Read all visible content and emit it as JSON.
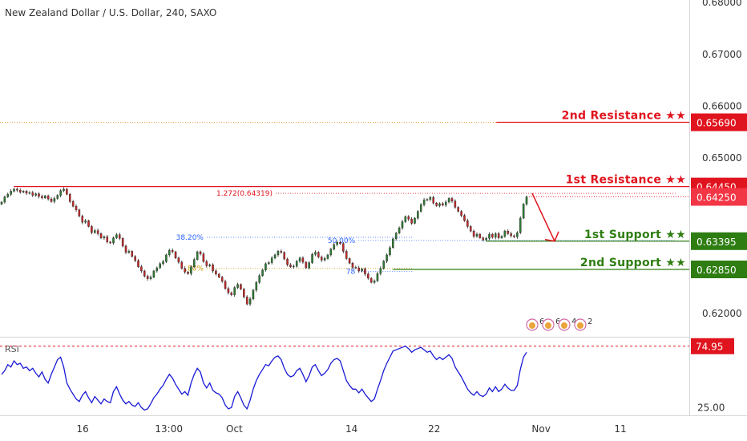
{
  "chart_data": {
    "type": "candlestick",
    "title": "New Zealand Dollar / U.S. Dollar, 240, SAXO",
    "price_axis": {
      "ylim": [
        0.6155,
        0.6805
      ],
      "ticks": [
        "0.68000",
        "0.67000",
        "0.66000",
        "0.65000",
        "0.62000"
      ],
      "tick_values": [
        0.68,
        0.67,
        0.66,
        0.65,
        0.62
      ]
    },
    "time_axis": {
      "ticks": [
        "16",
        "13:00",
        "Oct",
        "14",
        "22",
        "Nov",
        "11"
      ],
      "tick_positions": [
        0.12,
        0.245,
        0.34,
        0.51,
        0.63,
        0.785,
        0.9
      ]
    },
    "current_price": {
      "value": 0.6425,
      "label": "0.64250",
      "color": "#f23645"
    },
    "levels": [
      {
        "name": "2nd Resistance ★★",
        "value": 0.6569,
        "label": "0.65690",
        "color": "#e0141e",
        "kind": "resistance",
        "x_start": 0.72
      },
      {
        "name": "1st Resistance ★★",
        "value": 0.6445,
        "label": "0.64450",
        "color": "#e0141e",
        "kind": "resistance",
        "x_start": 0.02
      },
      {
        "name": "1st Support ★★",
        "value": 0.63395,
        "label": "0.63395",
        "color": "#2e7d12",
        "kind": "support",
        "x_start": 0.705
      },
      {
        "name": "2nd Support ★★",
        "value": 0.6285,
        "label": "0.62850",
        "color": "#2e7d12",
        "kind": "support",
        "x_start": 0.57
      }
    ],
    "fib_annotations": [
      {
        "label": "1.272(0.64319)",
        "value": 0.64319,
        "color": "#e0141e",
        "x_from": 0.4,
        "x_to": 0.98
      },
      {
        "label": "38.20%",
        "value": 0.6347,
        "color": "#2962ff",
        "x_from": 0.3,
        "x_to": 0.6
      },
      {
        "label": "50.00%",
        "value": 0.6341,
        "color": "#2962ff",
        "x_from": 0.52,
        "x_to": 0.98
      },
      {
        "label": ".80%",
        "value": 0.6287,
        "color": "#c59a00",
        "x_from": 0.3,
        "x_to": 0.6
      },
      {
        "label": "78",
        "value": 0.6281,
        "color": "#2962ff",
        "x_from": 0.52,
        "x_to": 0.6
      }
    ],
    "series": [
      {
        "name": "NZDUSD",
        "closes": [
          0.6415,
          0.6425,
          0.643,
          0.6436,
          0.644,
          0.6438,
          0.6434,
          0.6436,
          0.6432,
          0.6433,
          0.6428,
          0.6431,
          0.6426,
          0.6423,
          0.6427,
          0.6421,
          0.6416,
          0.6422,
          0.6428,
          0.6437,
          0.644,
          0.643,
          0.6416,
          0.6407,
          0.64,
          0.6388,
          0.6376,
          0.6379,
          0.6368,
          0.6356,
          0.636,
          0.6354,
          0.6346,
          0.6348,
          0.6338,
          0.6336,
          0.6346,
          0.6352,
          0.6345,
          0.633,
          0.6318,
          0.632,
          0.631,
          0.6302,
          0.629,
          0.6282,
          0.6272,
          0.6267,
          0.627,
          0.6282,
          0.6288,
          0.6296,
          0.63,
          0.6313,
          0.6322,
          0.6319,
          0.6307,
          0.6299,
          0.6287,
          0.628,
          0.6277,
          0.629,
          0.6304,
          0.6319,
          0.6315,
          0.63,
          0.6292,
          0.6294,
          0.6282,
          0.6276,
          0.627,
          0.6262,
          0.6248,
          0.624,
          0.6236,
          0.625,
          0.6256,
          0.6247,
          0.6232,
          0.6218,
          0.6228,
          0.6245,
          0.626,
          0.6273,
          0.6284,
          0.6296,
          0.6298,
          0.6307,
          0.6313,
          0.632,
          0.6318,
          0.6305,
          0.6294,
          0.629,
          0.6291,
          0.6301,
          0.6307,
          0.6299,
          0.6288,
          0.6298,
          0.6314,
          0.6318,
          0.6309,
          0.6303,
          0.6306,
          0.6313,
          0.6324,
          0.6333,
          0.6337,
          0.6335,
          0.632,
          0.6306,
          0.6297,
          0.6289,
          0.6288,
          0.6282,
          0.6286,
          0.6276,
          0.6268,
          0.626,
          0.6263,
          0.6277,
          0.6287,
          0.6301,
          0.6313,
          0.6327,
          0.6344,
          0.6355,
          0.6365,
          0.6377,
          0.6387,
          0.6382,
          0.6374,
          0.6384,
          0.6397,
          0.641,
          0.6419,
          0.642,
          0.6424,
          0.6413,
          0.6408,
          0.6412,
          0.6409,
          0.6415,
          0.6422,
          0.6417,
          0.6405,
          0.6397,
          0.6389,
          0.6379,
          0.6368,
          0.6359,
          0.6349,
          0.6353,
          0.6346,
          0.6342,
          0.6345,
          0.6353,
          0.6347,
          0.6354,
          0.6346,
          0.6349,
          0.6359,
          0.6354,
          0.635,
          0.6348,
          0.6356,
          0.6384,
          0.6411,
          0.6425
        ]
      }
    ],
    "rsi": {
      "label": "RSI",
      "ylim": [
        20,
        80
      ],
      "tick": "25.00",
      "tick_value": 25,
      "overbought": {
        "value": 74.95,
        "label": "74.95"
      },
      "values": [
        52,
        55,
        60,
        58,
        63,
        60,
        61,
        57,
        58,
        55,
        57,
        53,
        50,
        54,
        48,
        45,
        52,
        58,
        64,
        66,
        58,
        45,
        40,
        36,
        32,
        30,
        35,
        38,
        33,
        29,
        34,
        31,
        28,
        32,
        30,
        29,
        38,
        42,
        36,
        31,
        28,
        30,
        27,
        26,
        29,
        25,
        23,
        24,
        28,
        33,
        36,
        40,
        43,
        48,
        52,
        49,
        44,
        40,
        36,
        38,
        35,
        45,
        52,
        57,
        54,
        45,
        41,
        45,
        39,
        37,
        36,
        33,
        27,
        24,
        25,
        34,
        38,
        33,
        27,
        24,
        31,
        40,
        47,
        52,
        56,
        60,
        59,
        63,
        66,
        67,
        64,
        57,
        52,
        50,
        51,
        55,
        57,
        52,
        46,
        51,
        58,
        60,
        55,
        51,
        53,
        56,
        61,
        64,
        65,
        63,
        55,
        47,
        43,
        40,
        40,
        37,
        40,
        36,
        33,
        30,
        32,
        40,
        47,
        55,
        61,
        66,
        71,
        72,
        73,
        74,
        75,
        73,
        70,
        72,
        73,
        74,
        72,
        70,
        71,
        67,
        64,
        66,
        64,
        66,
        68,
        65,
        58,
        54,
        50,
        45,
        40,
        37,
        35,
        38,
        35,
        34,
        36,
        41,
        38,
        42,
        38,
        40,
        44,
        41,
        39,
        39,
        43,
        56,
        66,
        70
      ]
    },
    "events": [
      {
        "label": "6"
      },
      {
        "label": "6"
      },
      {
        "label": "4"
      },
      {
        "label": "2"
      }
    ]
  }
}
